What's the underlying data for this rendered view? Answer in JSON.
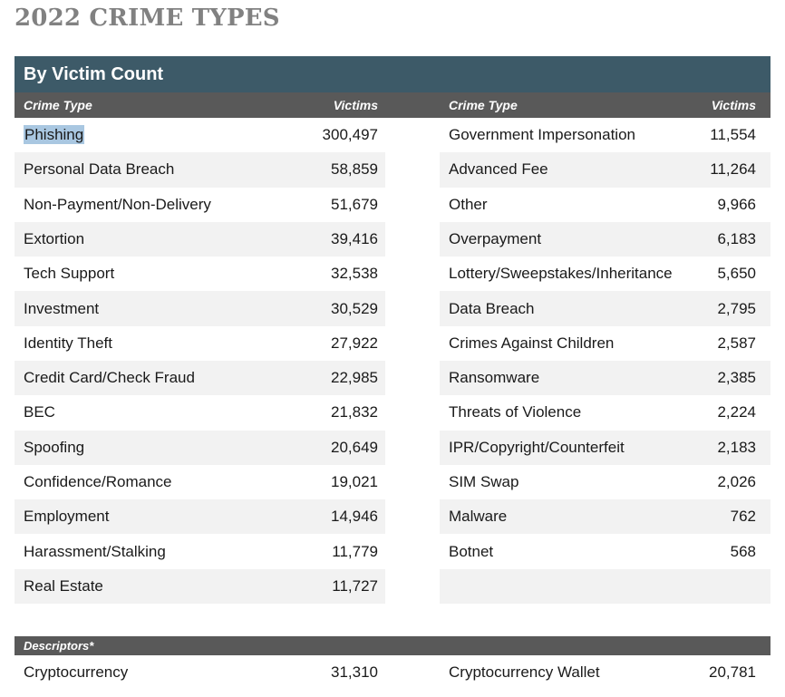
{
  "page": {
    "title": "2022 CRIME TYPES"
  },
  "colors": {
    "section_header_teal": "#3D5A68",
    "column_header_gray": "#595959",
    "row_stripe_gray": "#F2F2F2",
    "selection_highlight_blue": "#A9C7E1",
    "title_gray": "#818181"
  },
  "table": {
    "section_title": "By Victim Count",
    "column_headers": {
      "crime_type": "Crime Type",
      "victims": "Victims"
    },
    "left_rows": [
      {
        "label": "Phishing",
        "value": "300,497",
        "highlighted": true
      },
      {
        "label": "Personal Data Breach",
        "value": "58,859"
      },
      {
        "label": "Non-Payment/Non-Delivery",
        "value": "51,679"
      },
      {
        "label": "Extortion",
        "value": "39,416"
      },
      {
        "label": "Tech Support",
        "value": "32,538"
      },
      {
        "label": "Investment",
        "value": "30,529"
      },
      {
        "label": "Identity Theft",
        "value": "27,922"
      },
      {
        "label": "Credit Card/Check Fraud",
        "value": "22,985"
      },
      {
        "label": "BEC",
        "value": "21,832"
      },
      {
        "label": "Spoofing",
        "value": "20,649"
      },
      {
        "label": "Confidence/Romance",
        "value": "19,021"
      },
      {
        "label": "Employment",
        "value": "14,946"
      },
      {
        "label": "Harassment/Stalking",
        "value": "11,779"
      },
      {
        "label": "Real Estate",
        "value": "11,727"
      }
    ],
    "right_rows": [
      {
        "label": "Government Impersonation",
        "value": "11,554"
      },
      {
        "label": "Advanced Fee",
        "value": "11,264"
      },
      {
        "label": "Other",
        "value": "9,966"
      },
      {
        "label": "Overpayment",
        "value": "6,183"
      },
      {
        "label": "Lottery/Sweepstakes/Inheritance",
        "value": "5,650"
      },
      {
        "label": "Data Breach",
        "value": "2,795"
      },
      {
        "label": "Crimes Against Children",
        "value": "2,587"
      },
      {
        "label": "Ransomware",
        "value": "2,385"
      },
      {
        "label": "Threats of Violence",
        "value": "2,224"
      },
      {
        "label": "IPR/Copyright/Counterfeit",
        "value": "2,183"
      },
      {
        "label": "SIM Swap",
        "value": "2,026"
      },
      {
        "label": "Malware",
        "value": "762"
      },
      {
        "label": "Botnet",
        "value": "568"
      },
      {
        "label": "",
        "value": ""
      }
    ]
  },
  "descriptors": {
    "section_title": "Descriptors*",
    "left_rows": [
      {
        "label": "Cryptocurrency",
        "value": "31,310"
      }
    ],
    "right_rows": [
      {
        "label": "Cryptocurrency Wallet",
        "value": "20,781"
      }
    ]
  },
  "chart_data": {
    "type": "table",
    "title": "2022 CRIME TYPES",
    "subtitle": "By Victim Count",
    "columns": [
      "Crime Type",
      "Victims"
    ],
    "rows": [
      [
        "Phishing",
        300497
      ],
      [
        "Personal Data Breach",
        58859
      ],
      [
        "Non-Payment/Non-Delivery",
        51679
      ],
      [
        "Extortion",
        39416
      ],
      [
        "Tech Support",
        32538
      ],
      [
        "Investment",
        30529
      ],
      [
        "Identity Theft",
        27922
      ],
      [
        "Credit Card/Check Fraud",
        22985
      ],
      [
        "BEC",
        21832
      ],
      [
        "Spoofing",
        20649
      ],
      [
        "Confidence/Romance",
        19021
      ],
      [
        "Employment",
        14946
      ],
      [
        "Harassment/Stalking",
        11779
      ],
      [
        "Real Estate",
        11727
      ],
      [
        "Government Impersonation",
        11554
      ],
      [
        "Advanced Fee",
        11264
      ],
      [
        "Other",
        9966
      ],
      [
        "Overpayment",
        6183
      ],
      [
        "Lottery/Sweepstakes/Inheritance",
        5650
      ],
      [
        "Data Breach",
        2795
      ],
      [
        "Crimes Against Children",
        2587
      ],
      [
        "Ransomware",
        2385
      ],
      [
        "Threats of Violence",
        2224
      ],
      [
        "IPR/Copyright/Counterfeit",
        2183
      ],
      [
        "SIM Swap",
        2026
      ],
      [
        "Malware",
        762
      ],
      [
        "Botnet",
        568
      ]
    ],
    "descriptors_rows": [
      [
        "Cryptocurrency",
        31310
      ],
      [
        "Cryptocurrency Wallet",
        20781
      ]
    ],
    "layout_hints": {
      "two_column_split": true,
      "zebra_striping": true,
      "highlighted_cell": "Phishing"
    }
  }
}
